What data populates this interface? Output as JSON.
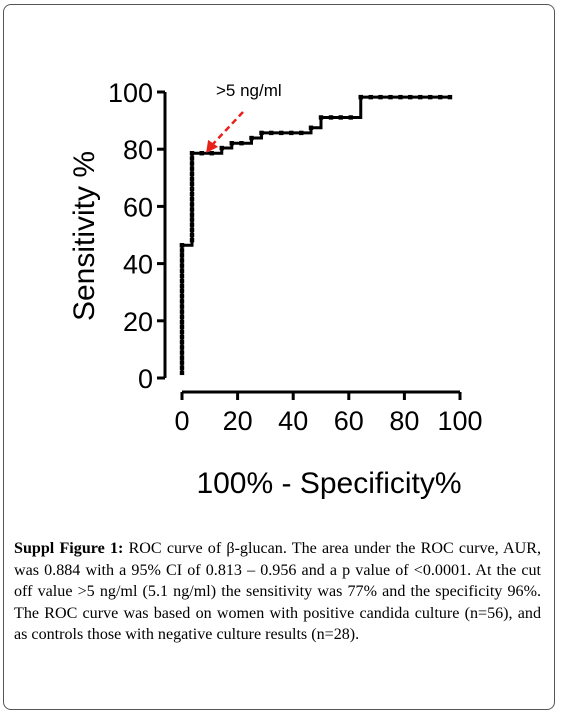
{
  "chart_data": {
    "type": "line",
    "title": "",
    "xlabel": "100% - Specificity%",
    "ylabel": "Sensitivity %",
    "xlim": [
      0,
      100
    ],
    "ylim": [
      0,
      100
    ],
    "x_ticks": [
      "0",
      "20",
      "40",
      "60",
      "80",
      "100"
    ],
    "y_ticks": [
      "0",
      "20",
      "40",
      "60",
      "80",
      "100"
    ],
    "grid": false,
    "legend": "none",
    "annotation": {
      "text": ">5 ng/ml",
      "x": 4,
      "y": 78,
      "arrow_color": "#e8211b"
    },
    "series": [
      {
        "color": "#000000",
        "marker": "square",
        "x": [
          0,
          0,
          0,
          0,
          0,
          0,
          0,
          0,
          0,
          0,
          0,
          0,
          0,
          0,
          0,
          0,
          0,
          0,
          0,
          0,
          0,
          0,
          0,
          0,
          0,
          0,
          0,
          3.6,
          3.6,
          3.6,
          3.6,
          3.6,
          3.6,
          3.6,
          3.6,
          3.6,
          3.6,
          3.6,
          3.6,
          3.6,
          3.6,
          3.6,
          3.6,
          3.6,
          3.6,
          7.1,
          10.7,
          14.3,
          17.9,
          21.4,
          25,
          28.6,
          32.1,
          35.7,
          39.3,
          42.9,
          46.4,
          50,
          53.6,
          57.1,
          60.7,
          64.3,
          64.3,
          67.9,
          71.4,
          75,
          78.6,
          82.1,
          85.7,
          89.3,
          92.9,
          96.4
        ],
        "y": [
          1.8,
          3.6,
          5.4,
          7.1,
          8.9,
          10.7,
          12.5,
          14.3,
          16.1,
          17.9,
          19.6,
          21.4,
          23.2,
          25,
          26.8,
          28.6,
          30.4,
          32.1,
          33.9,
          35.7,
          37.5,
          39.3,
          41.1,
          42.9,
          44.6,
          46.4,
          46.4,
          48.2,
          50,
          51.8,
          53.6,
          55.4,
          57.1,
          58.9,
          60.7,
          62.5,
          64.3,
          66.1,
          67.9,
          69.6,
          71.4,
          73.2,
          75,
          76.8,
          78.6,
          78.6,
          78.6,
          80.4,
          82.1,
          82.1,
          83.9,
          85.7,
          85.7,
          85.7,
          85.7,
          85.7,
          87.5,
          91.1,
          91.1,
          91.1,
          91.1,
          98.2,
          98.2,
          98.2,
          98.2,
          98.2,
          98.2,
          98.2,
          98.2,
          98.2,
          98.2,
          98.2
        ]
      }
    ]
  },
  "caption": {
    "label": "Suppl Figure 1:",
    "text": " ROC curve of β-glucan. The area under the ROC curve, AUR, was 0.884 with a 95% CI of 0.813 – 0.956 and a p value of <0.0001. At the cut off value >5 ng/ml (5.1 ng/ml) the sensitivity was 77% and the specificity 96%. The ROC curve was based on women with positive candida culture (n=56), and as controls those with negative culture results (n=28)."
  }
}
